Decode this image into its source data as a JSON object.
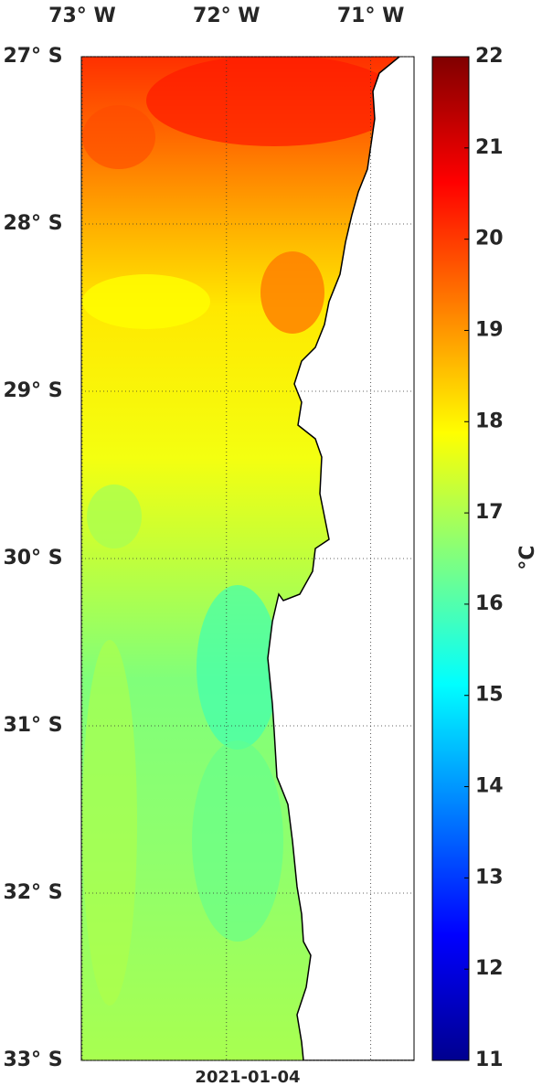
{
  "map": {
    "lon_ticks": [
      {
        "value": -73,
        "label": "73° W"
      },
      {
        "value": -72,
        "label": "72° W"
      },
      {
        "value": -71,
        "label": "71° W"
      }
    ],
    "lat_ticks": [
      {
        "value": -27,
        "label": "27° S"
      },
      {
        "value": -28,
        "label": "28° S"
      },
      {
        "value": -29,
        "label": "29° S"
      },
      {
        "value": -30,
        "label": "30° S"
      },
      {
        "value": -31,
        "label": "31° S"
      },
      {
        "value": -32,
        "label": "32° S"
      },
      {
        "value": -33,
        "label": "33° S"
      }
    ],
    "xlim": [
      -73.006,
      -70.7
    ],
    "ylim": [
      -33,
      -27
    ],
    "date": "2021-01-04",
    "colorbar": {
      "label": "°C",
      "lim": [
        11,
        22
      ],
      "ticks": [
        11,
        12,
        13,
        14,
        15,
        16,
        17,
        18,
        19,
        20,
        21,
        22
      ]
    }
  }
}
